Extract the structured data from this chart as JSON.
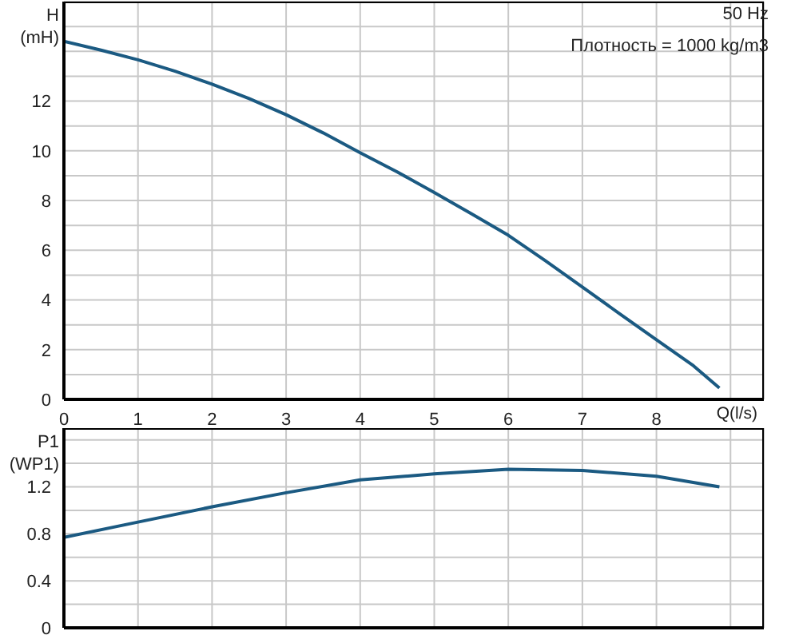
{
  "chart_data": [
    {
      "type": "line",
      "ylabel": "H (mH)",
      "annotations": [
        "50 Hz",
        "Плотность = 1000 kg/m3"
      ],
      "xlabel": "Q(l/s)",
      "grid": true,
      "marker": "none",
      "line_style": "solid",
      "xlim": [
        0,
        9.45
      ],
      "xticks": [
        0,
        1,
        2,
        3,
        4,
        5,
        6,
        7,
        8,
        {
          "value": 9,
          "label": null
        }
      ],
      "ylim": [
        0,
        16
      ],
      "yticks": [
        0,
        {
          "value": 1,
          "label": null
        },
        2,
        {
          "value": 3,
          "label": null
        },
        4,
        {
          "value": 5,
          "label": null
        },
        6,
        {
          "value": 7,
          "label": null
        },
        8,
        {
          "value": 9,
          "label": null
        },
        10,
        {
          "value": 11,
          "label": null
        },
        12,
        {
          "value": 13,
          "label": null
        },
        {
          "value": 14,
          "label": null
        },
        {
          "value": 15,
          "label": null
        },
        {
          "value": 16,
          "label": null
        }
      ],
      "x": [
        0,
        0.5,
        1,
        1.5,
        2,
        2.5,
        3,
        3.5,
        4,
        4.5,
        5,
        5.5,
        6,
        6.5,
        7,
        7.5,
        8,
        8.5,
        8.85
      ],
      "series": [
        {
          "color": "#1b5a82",
          "values": [
            14.4,
            14.05,
            13.66,
            13.2,
            12.68,
            12.1,
            11.45,
            10.72,
            9.92,
            9.15,
            8.32,
            7.47,
            6.6,
            5.58,
            4.52,
            3.45,
            2.4,
            1.35,
            0.46
          ]
        }
      ]
    },
    {
      "type": "line",
      "ylabel": "P1 (WP1)",
      "grid": true,
      "marker": "none",
      "line_style": "solid",
      "tick_labels": "y",
      "xlim": [
        0,
        9.45
      ],
      "xticks": [
        0,
        1,
        2,
        3,
        4,
        5,
        6,
        7,
        8,
        9
      ],
      "ylim": [
        0,
        1.7
      ],
      "yticks": [
        0,
        {
          "value": 0.2,
          "label": null
        },
        0.4,
        {
          "value": 0.6,
          "label": null
        },
        0.8,
        {
          "value": 1.0,
          "label": null
        },
        1.2,
        {
          "value": 1.4,
          "label": null
        },
        {
          "value": 1.6,
          "label": null
        }
      ],
      "x": [
        0,
        1,
        2,
        3,
        4,
        5,
        6,
        7,
        8,
        8.85
      ],
      "series": [
        {
          "color": "#1b5a82",
          "values": [
            0.77,
            0.9,
            1.03,
            1.15,
            1.26,
            1.31,
            1.35,
            1.34,
            1.29,
            1.2
          ]
        }
      ]
    }
  ]
}
